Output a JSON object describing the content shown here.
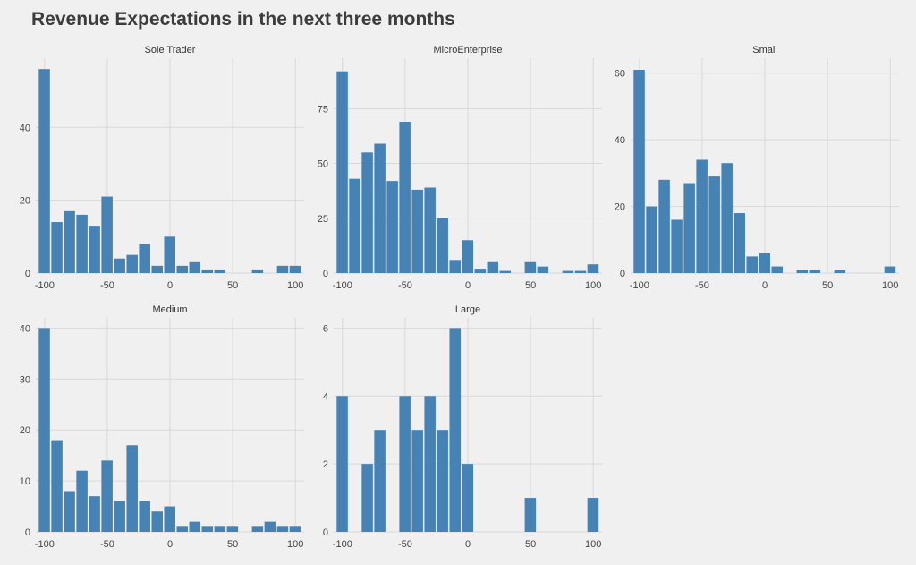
{
  "title": "Revenue Expectations in the next three months",
  "colors": {
    "bar": "#4682b4",
    "background": "#f0f0f0",
    "grid": "#d9d9d9"
  },
  "chart_data": {
    "type": "bar",
    "title": "Revenue Expectations in the next three months",
    "chart_kind": "histogram facets",
    "x_ticks": [
      -100,
      -50,
      0,
      50,
      100
    ],
    "xlim": [
      -107,
      107
    ],
    "grid": true,
    "panels": [
      {
        "name": "Sole Trader",
        "ylim": [
          0,
          59
        ],
        "y_ticks": [
          0,
          20,
          40
        ],
        "bins": [
          {
            "x": -100,
            "y": 56
          },
          {
            "x": -90,
            "y": 14
          },
          {
            "x": -80,
            "y": 17
          },
          {
            "x": -70,
            "y": 16
          },
          {
            "x": -60,
            "y": 13
          },
          {
            "x": -50,
            "y": 21
          },
          {
            "x": -40,
            "y": 4
          },
          {
            "x": -30,
            "y": 5
          },
          {
            "x": -20,
            "y": 8
          },
          {
            "x": -10,
            "y": 2
          },
          {
            "x": 0,
            "y": 10
          },
          {
            "x": 10,
            "y": 2
          },
          {
            "x": 20,
            "y": 3
          },
          {
            "x": 30,
            "y": 1
          },
          {
            "x": 40,
            "y": 1
          },
          {
            "x": 70,
            "y": 1
          },
          {
            "x": 90,
            "y": 2
          },
          {
            "x": 100,
            "y": 2
          }
        ]
      },
      {
        "name": "MicroEnterprise",
        "ylim": [
          0,
          98
        ],
        "y_ticks": [
          0,
          25,
          50,
          75
        ],
        "bins": [
          {
            "x": -100,
            "y": 92
          },
          {
            "x": -90,
            "y": 43
          },
          {
            "x": -80,
            "y": 55
          },
          {
            "x": -70,
            "y": 59
          },
          {
            "x": -60,
            "y": 42
          },
          {
            "x": -50,
            "y": 69
          },
          {
            "x": -40,
            "y": 38
          },
          {
            "x": -30,
            "y": 39
          },
          {
            "x": -20,
            "y": 25
          },
          {
            "x": -10,
            "y": 6
          },
          {
            "x": 0,
            "y": 15
          },
          {
            "x": 10,
            "y": 2
          },
          {
            "x": 20,
            "y": 5
          },
          {
            "x": 30,
            "y": 1
          },
          {
            "x": 50,
            "y": 5
          },
          {
            "x": 60,
            "y": 3
          },
          {
            "x": 80,
            "y": 1
          },
          {
            "x": 90,
            "y": 1
          },
          {
            "x": 100,
            "y": 4
          }
        ]
      },
      {
        "name": "Small",
        "ylim": [
          0,
          64.5
        ],
        "y_ticks": [
          0,
          20,
          40,
          60
        ],
        "bins": [
          {
            "x": -100,
            "y": 61
          },
          {
            "x": -90,
            "y": 20
          },
          {
            "x": -80,
            "y": 28
          },
          {
            "x": -70,
            "y": 16
          },
          {
            "x": -60,
            "y": 27
          },
          {
            "x": -50,
            "y": 34
          },
          {
            "x": -40,
            "y": 29
          },
          {
            "x": -30,
            "y": 33
          },
          {
            "x": -20,
            "y": 18
          },
          {
            "x": -10,
            "y": 5
          },
          {
            "x": 0,
            "y": 6
          },
          {
            "x": 10,
            "y": 2
          },
          {
            "x": 30,
            "y": 1
          },
          {
            "x": 40,
            "y": 1
          },
          {
            "x": 60,
            "y": 1
          },
          {
            "x": 100,
            "y": 2
          }
        ]
      },
      {
        "name": "Medium",
        "ylim": [
          0,
          42
        ],
        "y_ticks": [
          0,
          10,
          20,
          30,
          40
        ],
        "bins": [
          {
            "x": -100,
            "y": 40
          },
          {
            "x": -90,
            "y": 18
          },
          {
            "x": -80,
            "y": 8
          },
          {
            "x": -70,
            "y": 12
          },
          {
            "x": -60,
            "y": 7
          },
          {
            "x": -50,
            "y": 14
          },
          {
            "x": -40,
            "y": 6
          },
          {
            "x": -30,
            "y": 17
          },
          {
            "x": -20,
            "y": 6
          },
          {
            "x": -10,
            "y": 4
          },
          {
            "x": 0,
            "y": 5
          },
          {
            "x": 10,
            "y": 1
          },
          {
            "x": 20,
            "y": 2
          },
          {
            "x": 30,
            "y": 1
          },
          {
            "x": 40,
            "y": 1
          },
          {
            "x": 50,
            "y": 1
          },
          {
            "x": 70,
            "y": 1
          },
          {
            "x": 80,
            "y": 2
          },
          {
            "x": 90,
            "y": 1
          },
          {
            "x": 100,
            "y": 1
          }
        ]
      },
      {
        "name": "Large",
        "ylim": [
          0,
          6.3
        ],
        "y_ticks": [
          0,
          2,
          4,
          6
        ],
        "bins": [
          {
            "x": -100,
            "y": 4
          },
          {
            "x": -80,
            "y": 2
          },
          {
            "x": -70,
            "y": 3
          },
          {
            "x": -50,
            "y": 4
          },
          {
            "x": -40,
            "y": 3
          },
          {
            "x": -30,
            "y": 4
          },
          {
            "x": -20,
            "y": 3
          },
          {
            "x": -10,
            "y": 6
          },
          {
            "x": 0,
            "y": 2
          },
          {
            "x": 50,
            "y": 1
          },
          {
            "x": 100,
            "y": 1
          }
        ]
      }
    ]
  }
}
